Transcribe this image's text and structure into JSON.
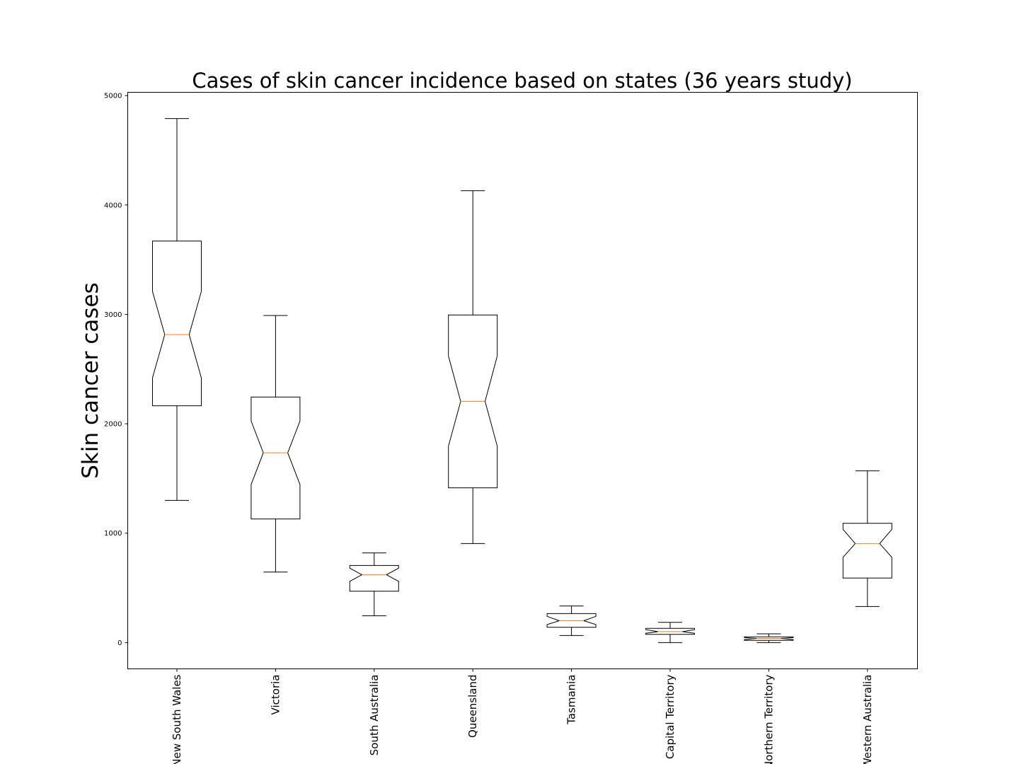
{
  "chart_data": {
    "type": "box",
    "notched": true,
    "title": "Cases of skin cancer incidence based on states (36 years study)",
    "xlabel": "",
    "ylabel": "Skin cancer cases",
    "ylim": [
      -240,
      5030
    ],
    "yticks": [
      0,
      1000,
      2000,
      3000,
      4000,
      5000
    ],
    "grid": false,
    "colors": {
      "box": "#000000",
      "median": "#ff7f0e"
    },
    "categories": [
      "New South Wales",
      "Victoria",
      "South Australia",
      "Queensland",
      "Tasmania",
      "Capital Territory",
      "Northern Territory",
      "Western Australia"
    ],
    "boxes": [
      {
        "name": "New South Wales",
        "whisker_low": 1300,
        "q1": 2165,
        "median": 2815,
        "q3": 3670,
        "whisker_high": 4790,
        "notch_low": 2420,
        "notch_high": 3210
      },
      {
        "name": "Victoria",
        "whisker_low": 645,
        "q1": 1130,
        "median": 1735,
        "q3": 2245,
        "whisker_high": 2990,
        "notch_low": 1445,
        "notch_high": 2025
      },
      {
        "name": "South Australia",
        "whisker_low": 245,
        "q1": 470,
        "median": 620,
        "q3": 705,
        "whisker_high": 820,
        "notch_low": 560,
        "notch_high": 680
      },
      {
        "name": "Queensland",
        "whisker_low": 905,
        "q1": 1415,
        "median": 2205,
        "q3": 2995,
        "whisker_high": 4130,
        "notch_low": 1795,
        "notch_high": 2620
      },
      {
        "name": "Tasmania",
        "whisker_low": 65,
        "q1": 140,
        "median": 200,
        "q3": 265,
        "whisker_high": 335,
        "notch_low": 165,
        "notch_high": 240
      },
      {
        "name": "Capital Territory",
        "whisker_low": 0,
        "q1": 75,
        "median": 100,
        "q3": 130,
        "whisker_high": 185,
        "notch_low": 85,
        "notch_high": 118
      },
      {
        "name": "Northern Territory",
        "whisker_low": 0,
        "q1": 20,
        "median": 38,
        "q3": 52,
        "whisker_high": 80,
        "notch_low": 28,
        "notch_high": 46
      },
      {
        "name": "Western Australia",
        "whisker_low": 330,
        "q1": 590,
        "median": 905,
        "q3": 1090,
        "whisker_high": 1570,
        "notch_low": 780,
        "notch_high": 1035
      }
    ]
  }
}
